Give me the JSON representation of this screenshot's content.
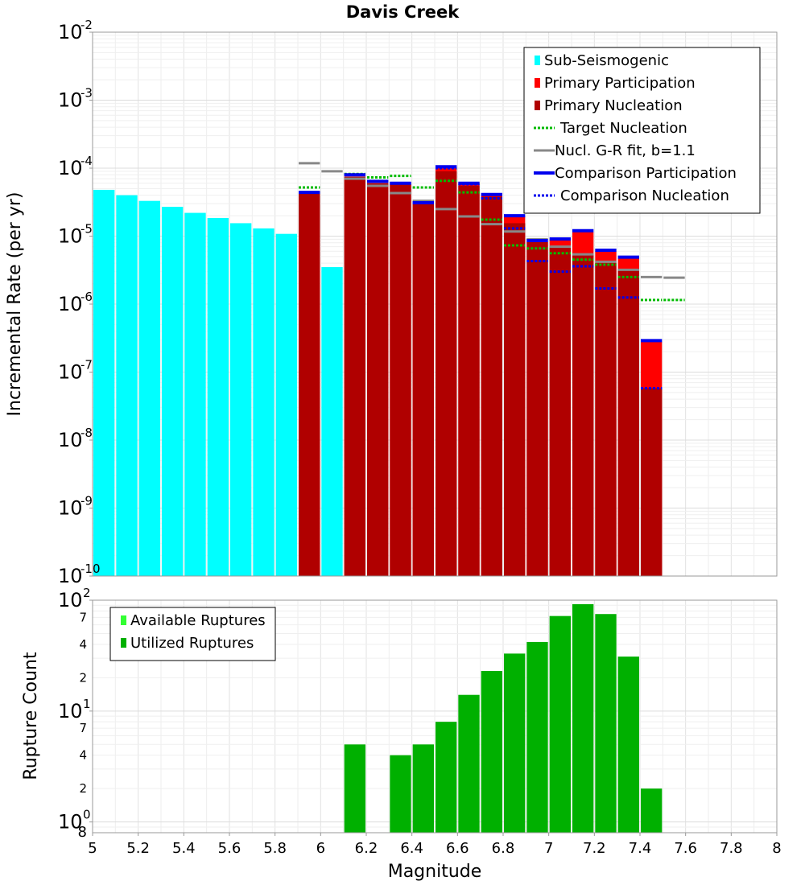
{
  "chart_data": [
    {
      "type": "bar",
      "title": "Davis Creek",
      "xlabel": "Magnitude",
      "ylabel": "Incremental Rate (per yr)",
      "xlim": [
        5,
        8
      ],
      "ylim": [
        1e-10,
        0.01
      ],
      "yscale": "log",
      "grid": true,
      "legend_position": "top-right",
      "bin_width": 0.1,
      "x_ticks": [
        "5",
        "5.2",
        "5.4",
        "5.6",
        "5.8",
        "6",
        "6.2",
        "6.4",
        "6.6",
        "6.8",
        "7",
        "7.2",
        "7.4",
        "7.6",
        "7.8",
        "8"
      ],
      "y_ticks": [
        {
          "base": "10",
          "exp": "-10",
          "value": 1e-10
        },
        {
          "base": "10",
          "exp": "-9",
          "value": 1e-09
        },
        {
          "base": "10",
          "exp": "-8",
          "value": 1e-08
        },
        {
          "base": "10",
          "exp": "-7",
          "value": 1e-07
        },
        {
          "base": "10",
          "exp": "-6",
          "value": 1e-06
        },
        {
          "base": "10",
          "exp": "-5",
          "value": 1e-05
        },
        {
          "base": "10",
          "exp": "-4",
          "value": 0.0001
        },
        {
          "base": "10",
          "exp": "-3",
          "value": 0.001
        },
        {
          "base": "10",
          "exp": "-2",
          "value": 0.01
        }
      ],
      "legend": [
        {
          "label": "Sub-Seismogenic",
          "style": "box",
          "color": "#00ffff"
        },
        {
          "label": "Primary Participation",
          "style": "box",
          "color": "#ff0000"
        },
        {
          "label": "Primary Nucleation",
          "style": "box",
          "color": "#b00000"
        },
        {
          "label": "Target Nucleation",
          "style": "dotted",
          "color": "#00bb00"
        },
        {
          "label": "Nucl. G-R fit, b=1.1",
          "style": "solid",
          "color": "#888888"
        },
        {
          "label": "Comparison Participation",
          "style": "solid-thick",
          "color": "#0000ee"
        },
        {
          "label": "Comparison Nucleation",
          "style": "dotted",
          "color": "#0000ee"
        }
      ],
      "series": [
        {
          "name": "Sub-Seismogenic",
          "color": "#00ffff",
          "x": [
            5.05,
            5.15,
            5.25,
            5.35,
            5.45,
            5.55,
            5.65,
            5.75,
            5.85,
            6.05
          ],
          "values": [
            4.8e-05,
            4e-05,
            3.3e-05,
            2.7e-05,
            2.2e-05,
            1.85e-05,
            1.55e-05,
            1.3e-05,
            1.08e-05,
            3.5e-06
          ]
        },
        {
          "name": "Primary Participation",
          "color": "#ff0000",
          "x": [
            5.95,
            6.15,
            6.25,
            6.35,
            6.45,
            6.55,
            6.65,
            6.75,
            6.85,
            6.95,
            7.05,
            7.15,
            7.25,
            7.35,
            7.45
          ],
          "values": [
            4.2e-05,
            7.5e-05,
            6e-05,
            5.8e-05,
            3e-05,
            0.0001,
            5.8e-05,
            4e-05,
            1.95e-05,
            8.3e-06,
            8.8e-06,
            1.15e-05,
            6e-06,
            4.7e-06,
            2.8e-07
          ]
        },
        {
          "name": "Primary Nucleation",
          "color": "#b00000",
          "x": [
            5.95,
            6.15,
            6.25,
            6.35,
            6.45,
            6.55,
            6.65,
            6.75,
            6.85,
            6.95,
            7.05,
            7.15,
            7.25,
            7.35,
            7.45
          ],
          "values": [
            4.2e-05,
            7.5e-05,
            6e-05,
            5.8e-05,
            3e-05,
            9e-05,
            5.5e-05,
            3.8e-05,
            1.55e-05,
            8.3e-06,
            6.8e-06,
            5.3e-06,
            4e-06,
            3.3e-06,
            5.8e-08
          ]
        },
        {
          "name": "Target Nucleation",
          "color": "#00bb00",
          "x": [
            5.95,
            6.15,
            6.25,
            6.35,
            6.45,
            6.55,
            6.65,
            6.75,
            6.85,
            6.95,
            7.05,
            7.15,
            7.25,
            7.35,
            7.45,
            7.55
          ],
          "values": [
            5.2e-05,
            8.2e-05,
            7.3e-05,
            7.7e-05,
            5.2e-05,
            6.5e-05,
            4.4e-05,
            1.75e-05,
            7.3e-06,
            6.6e-06,
            5.6e-06,
            4.5e-06,
            3.8e-06,
            2.5e-06,
            1.15e-06,
            1.15e-06
          ]
        },
        {
          "name": "Nucl. G-R fit, b=1.1",
          "color": "#888888",
          "x": [
            5.95,
            6.05,
            6.15,
            6.25,
            6.35,
            6.45,
            6.55,
            6.65,
            6.75,
            6.85,
            6.95,
            7.05,
            7.15,
            7.25,
            7.35,
            7.45,
            7.55
          ],
          "values": [
            0.000118,
            9e-05,
            7e-05,
            5.5e-05,
            4.3e-05,
            3.3e-05,
            2.5e-05,
            1.95e-05,
            1.5e-05,
            1.17e-05,
            9e-06,
            7e-06,
            5.4e-06,
            4.2e-06,
            3.2e-06,
            2.5e-06,
            2.45e-06
          ]
        },
        {
          "name": "Comparison Participation",
          "color": "#0000ee",
          "x": [
            5.95,
            6.15,
            6.25,
            6.35,
            6.45,
            6.55,
            6.65,
            6.75,
            6.85,
            6.95,
            7.05,
            7.15,
            7.25,
            7.35,
            7.45
          ],
          "values": [
            4.4e-05,
            8e-05,
            6.4e-05,
            6e-05,
            3.1e-05,
            0.000105,
            6e-05,
            4.1e-05,
            2e-05,
            8.6e-06,
            9.1e-06,
            1.2e-05,
            6.2e-06,
            4.9e-06,
            2.9e-07
          ]
        },
        {
          "name": "Comparison Nucleation",
          "color": "#0000ee",
          "x": [
            5.95,
            6.15,
            6.25,
            6.35,
            6.45,
            6.55,
            6.65,
            6.75,
            6.85,
            6.95,
            7.05,
            7.15,
            7.25,
            7.35,
            7.45
          ],
          "values": [
            4.4e-05,
            8e-05,
            6.4e-05,
            6e-05,
            3.1e-05,
            0.0001,
            5.8e-05,
            3.6e-05,
            1.3e-05,
            4.3e-06,
            3e-06,
            3.6e-06,
            1.7e-06,
            1.25e-06,
            5.8e-08
          ]
        }
      ]
    },
    {
      "type": "bar",
      "title": "",
      "xlabel": "Magnitude",
      "ylabel": "Rupture Count",
      "xlim": [
        5,
        8
      ],
      "ylim": [
        0.8,
        100
      ],
      "yscale": "log",
      "grid": true,
      "legend_position": "top-left",
      "bin_width": 0.1,
      "y_ticks": [
        {
          "base": "10",
          "exp": "0",
          "value": 1
        },
        {
          "base": "10",
          "exp": "1",
          "value": 10
        },
        {
          "base": "10",
          "exp": "2",
          "value": 100
        }
      ],
      "y_minor_ticks": [
        {
          "label": "8",
          "value": 0.8
        },
        {
          "label": "2",
          "value": 2
        },
        {
          "label": "4",
          "value": 4
        },
        {
          "label": "7",
          "value": 7
        },
        {
          "label": "2",
          "value": 20
        },
        {
          "label": "4",
          "value": 40
        },
        {
          "label": "7",
          "value": 70
        }
      ],
      "legend": [
        {
          "label": "Available Ruptures",
          "style": "box",
          "color": "#33ff33"
        },
        {
          "label": "Utilized Ruptures",
          "style": "box",
          "color": "#00b000"
        }
      ],
      "series": [
        {
          "name": "Utilized Ruptures",
          "color": "#00b000",
          "x": [
            6.15,
            6.35,
            6.45,
            6.55,
            6.65,
            6.75,
            6.85,
            6.95,
            7.05,
            7.15,
            7.25,
            7.35,
            7.45
          ],
          "values": [
            5,
            4,
            5,
            8,
            14,
            23,
            33,
            42,
            72,
            92,
            75,
            31,
            2
          ]
        }
      ]
    }
  ]
}
